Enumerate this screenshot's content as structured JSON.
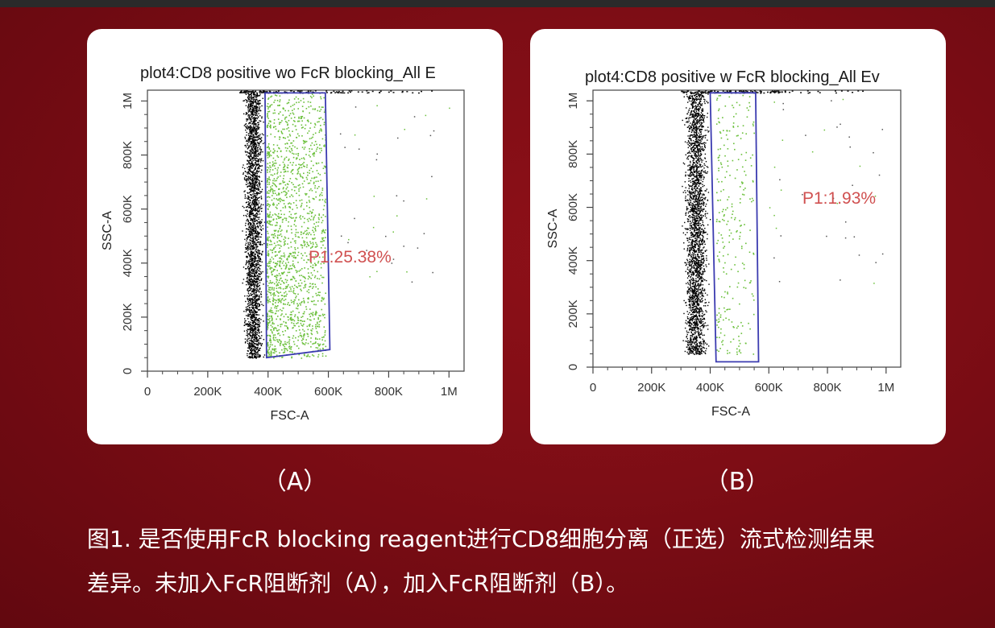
{
  "chart_data": [
    {
      "type": "scatter",
      "panel_label": "（A）",
      "title": "plot4:CD8 positive wo FcR blocking_All E",
      "xlabel": "FSC-A",
      "ylabel": "SSC-A",
      "xlim": [
        0,
        1050000
      ],
      "ylim": [
        0,
        1040000
      ],
      "x_ticks": [
        "0",
        "200K",
        "400K",
        "600K",
        "800K",
        "1M"
      ],
      "y_ticks": [
        "0",
        "200K",
        "400K",
        "600K",
        "800K",
        "1M"
      ],
      "populations": [
        {
          "color": "#000000",
          "x_range": [
            310000,
            390000
          ],
          "y_range": [
            50000,
            1030000
          ]
        },
        {
          "color": "#6abf3a",
          "x_range": [
            395000,
            590000
          ],
          "y_range": [
            50000,
            1030000
          ]
        }
      ],
      "gate": {
        "name": "P1",
        "polygon": [
          [
            390000,
            1030000
          ],
          [
            590000,
            1030000
          ],
          [
            605000,
            80000
          ],
          [
            395000,
            50000
          ]
        ],
        "percent": "P1:25.38%"
      }
    },
    {
      "type": "scatter",
      "panel_label": "（B）",
      "title": "plot4:CD8 positive w FcR blocking_All Ev",
      "xlabel": "FSC-A",
      "ylabel": "SSC-A",
      "xlim": [
        0,
        1050000
      ],
      "ylim": [
        0,
        1040000
      ],
      "x_ticks": [
        "0",
        "200K",
        "400K",
        "600K",
        "800K",
        "1M"
      ],
      "y_ticks": [
        "0",
        "200K",
        "400K",
        "600K",
        "800K",
        "1M"
      ],
      "populations": [
        {
          "color": "#000000",
          "x_range": [
            300000,
            400000
          ],
          "y_range": [
            50000,
            1030000
          ]
        },
        {
          "color": "#6abf3a",
          "x_range": [
            420000,
            550000
          ],
          "y_range": [
            50000,
            1030000
          ]
        }
      ],
      "gate": {
        "name": "P1",
        "polygon": [
          [
            400000,
            1030000
          ],
          [
            555000,
            1030000
          ],
          [
            565000,
            20000
          ],
          [
            420000,
            20000
          ]
        ],
        "percent": "P1:1.93%"
      }
    }
  ],
  "caption": {
    "line1": "图1. 是否使用FcR blocking reagent进行CD8细胞分离（正选）流式检测结果",
    "line2": "差异。未加入FcR阻断剂（A），加入FcR阻断剂（B）。"
  },
  "colors": {
    "background": "#7d0d15",
    "gate": "#3b3bb0",
    "percent_text": "#d05050"
  }
}
